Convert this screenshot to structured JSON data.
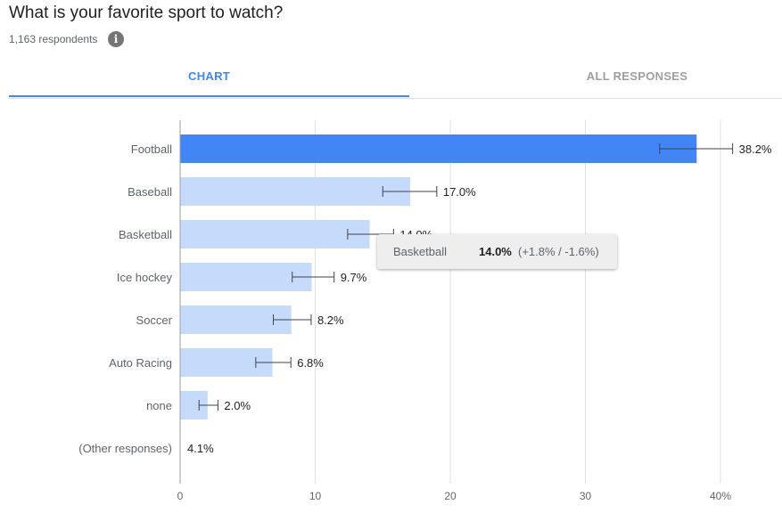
{
  "question": {
    "title": "What is your favorite sport to watch?",
    "respondents": "1,163 respondents",
    "info_icon": "info-icon"
  },
  "tabs": [
    {
      "label": "CHART",
      "active": true
    },
    {
      "label": "ALL RESPONSES",
      "active": false
    }
  ],
  "colors": {
    "highlight_bar": "#4285f4",
    "bar": "#c6dafc",
    "tab_active": "#4285f4",
    "tab_inactive": "#9e9e9e"
  },
  "chart_data": {
    "type": "bar",
    "orientation": "horizontal",
    "categories": [
      "Football",
      "Baseball",
      "Basketball",
      "Ice hockey",
      "Soccer",
      "Auto Racing",
      "none",
      "(Other responses)"
    ],
    "values": [
      38.2,
      17.0,
      14.0,
      9.7,
      8.2,
      6.8,
      2.0,
      4.1
    ],
    "value_labels": [
      "38.2%",
      "17.0%",
      "14.0%",
      "9.7%",
      "8.2%",
      "6.8%",
      "2.0%",
      "4.1%"
    ],
    "bar_shown": [
      true,
      true,
      true,
      true,
      true,
      true,
      true,
      false
    ],
    "error_low": [
      35.5,
      15.0,
      12.4,
      8.3,
      6.9,
      5.6,
      1.4,
      null
    ],
    "error_high": [
      40.9,
      19.0,
      15.8,
      11.4,
      9.7,
      8.2,
      2.8,
      null
    ],
    "highlighted_index": 0,
    "xlim": [
      0,
      40
    ],
    "xticks": [
      0,
      10,
      20,
      30,
      40
    ],
    "xtick_labels": [
      "0",
      "10",
      "20",
      "30",
      "40%"
    ],
    "grid": true
  },
  "tooltip": {
    "category": "Basketball",
    "value": "14.0%",
    "error": "(+1.8% / -1.6%)"
  }
}
